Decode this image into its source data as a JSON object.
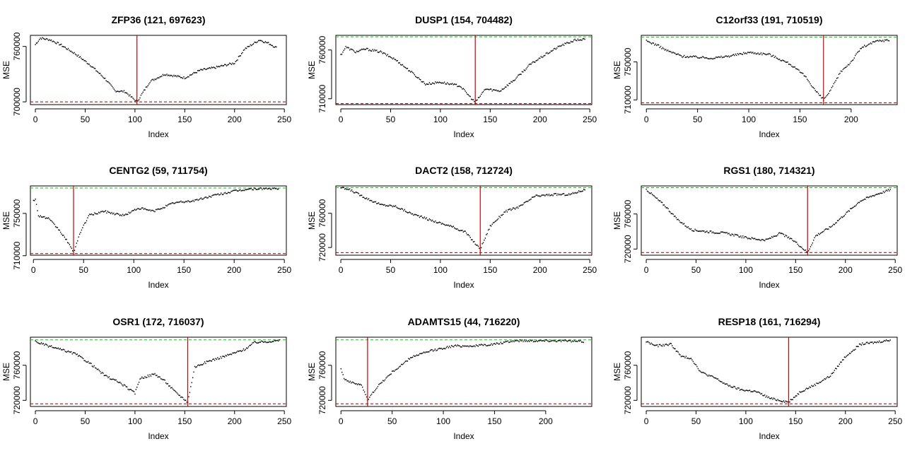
{
  "chart_data": [
    {
      "type": "scatter",
      "title": "ZFP36 (121, 697623)",
      "xlabel": "Index",
      "ylabel": "MSE",
      "xlim": [
        -5,
        252
      ],
      "ylim": [
        697000,
        772000
      ],
      "xticks": [
        0,
        50,
        100,
        150,
        200,
        250
      ],
      "yticks": [
        700000,
        760000
      ],
      "n": 243,
      "min_index": 102,
      "hline_low": 700000,
      "hline_high": null,
      "trend": [
        [
          0,
          762000
        ],
        [
          5,
          769000
        ],
        [
          15,
          767000
        ],
        [
          25,
          762000
        ],
        [
          40,
          752000
        ],
        [
          55,
          740000
        ],
        [
          70,
          725000
        ],
        [
          80,
          712000
        ],
        [
          90,
          711000
        ],
        [
          102,
          700000
        ],
        [
          115,
          722000
        ],
        [
          130,
          730000
        ],
        [
          150,
          726000
        ],
        [
          165,
          734000
        ],
        [
          180,
          737000
        ],
        [
          200,
          742000
        ],
        [
          210,
          757000
        ],
        [
          225,
          767000
        ],
        [
          235,
          763000
        ],
        [
          243,
          758000
        ]
      ],
      "colors": {
        "vline": "#cc0000",
        "hline_low": "#8b0000",
        "hline_high": "#00cc00"
      }
    },
    {
      "type": "scatter",
      "title": "DUSP1 (154, 704482)",
      "xlabel": "Index",
      "ylabel": "MSE",
      "xlim": [
        -5,
        252
      ],
      "ylim": [
        704000,
        775000
      ],
      "xticks": [
        0,
        50,
        100,
        150,
        200,
        250
      ],
      "yticks": [
        710000,
        760000
      ],
      "n": 246,
      "min_index": 135,
      "hline_low": 705000,
      "hline_high": 773500,
      "trend": [
        [
          0,
          755000
        ],
        [
          5,
          763000
        ],
        [
          15,
          758000
        ],
        [
          25,
          761000
        ],
        [
          40,
          758000
        ],
        [
          55,
          750000
        ],
        [
          70,
          738000
        ],
        [
          85,
          725000
        ],
        [
          100,
          727000
        ],
        [
          120,
          723000
        ],
        [
          135,
          706000
        ],
        [
          145,
          720000
        ],
        [
          160,
          718000
        ],
        [
          175,
          730000
        ],
        [
          190,
          745000
        ],
        [
          205,
          755000
        ],
        [
          220,
          764000
        ],
        [
          235,
          770000
        ],
        [
          246,
          771000
        ]
      ],
      "colors": {
        "vline": "#cc0000",
        "hline_low": "#8b0000",
        "hline_high": "#00cc00"
      }
    },
    {
      "type": "scatter",
      "title": "C12orf33 (191, 710519)",
      "xlabel": "Index",
      "ylabel": "MSE",
      "xlim": [
        -5,
        245
      ],
      "ylim": [
        705000,
        778000
      ],
      "xticks": [
        0,
        50,
        100,
        150,
        200
      ],
      "yticks": [
        710000,
        750000
      ],
      "n": 238,
      "min_index": 173,
      "hline_low": 707000,
      "hline_high": 776000,
      "trend": [
        [
          0,
          772000
        ],
        [
          10,
          768000
        ],
        [
          20,
          762000
        ],
        [
          35,
          756000
        ],
        [
          50,
          755000
        ],
        [
          65,
          754000
        ],
        [
          80,
          756000
        ],
        [
          100,
          760000
        ],
        [
          120,
          758000
        ],
        [
          140,
          748000
        ],
        [
          155,
          735000
        ],
        [
          165,
          720000
        ],
        [
          173,
          710000
        ],
        [
          180,
          720000
        ],
        [
          190,
          740000
        ],
        [
          200,
          750000
        ],
        [
          210,
          765000
        ],
        [
          225,
          772000
        ],
        [
          238,
          773000
        ]
      ],
      "colors": {
        "vline": "#cc0000",
        "hline_low": "#8b0000",
        "hline_high": "#00cc00"
      }
    },
    {
      "type": "scatter",
      "title": "CENTG2 (59, 711754)",
      "xlabel": "Index",
      "ylabel": "MSE",
      "xlim": [
        -3,
        252
      ],
      "ylim": [
        710500,
        776000
      ],
      "xticks": [
        0,
        50,
        100,
        150,
        200,
        250
      ],
      "yticks": [
        710000,
        750000
      ],
      "n": 245,
      "min_index": 40,
      "hline_low": 712000,
      "hline_high": 774000,
      "trend": [
        [
          2,
          763000
        ],
        [
          5,
          748000
        ],
        [
          15,
          745000
        ],
        [
          25,
          735000
        ],
        [
          35,
          722000
        ],
        [
          40,
          712000
        ],
        [
          45,
          728000
        ],
        [
          55,
          748000
        ],
        [
          70,
          752000
        ],
        [
          90,
          748000
        ],
        [
          105,
          755000
        ],
        [
          120,
          752000
        ],
        [
          140,
          760000
        ],
        [
          160,
          762000
        ],
        [
          180,
          767000
        ],
        [
          200,
          771000
        ],
        [
          215,
          773000
        ],
        [
          230,
          773500
        ],
        [
          245,
          773000
        ]
      ],
      "colors": {
        "vline": "#cc0000",
        "hline_low": "#8b0000",
        "hline_high": "#00cc00"
      }
    },
    {
      "type": "scatter",
      "title": "DACT2 (158, 712724)",
      "xlabel": "Index",
      "ylabel": "MSE",
      "xlim": [
        -5,
        252
      ],
      "ylim": [
        711000,
        792000
      ],
      "xticks": [
        0,
        50,
        100,
        150,
        200,
        250
      ],
      "yticks": [
        720000,
        760000
      ],
      "n": 246,
      "min_index": 140,
      "hline_low": 714000,
      "hline_high": 790000,
      "trend": [
        [
          0,
          790000
        ],
        [
          10,
          787000
        ],
        [
          25,
          778000
        ],
        [
          40,
          770000
        ],
        [
          55,
          768000
        ],
        [
          70,
          760000
        ],
        [
          90,
          752000
        ],
        [
          110,
          745000
        ],
        [
          125,
          738000
        ],
        [
          140,
          718000
        ],
        [
          150,
          745000
        ],
        [
          165,
          762000
        ],
        [
          180,
          768000
        ],
        [
          195,
          780000
        ],
        [
          215,
          782000
        ],
        [
          230,
          782000
        ],
        [
          246,
          788000
        ]
      ],
      "colors": {
        "vline": "#cc0000",
        "hline_low": "#8b0000",
        "hline_high": "#00cc00"
      }
    },
    {
      "type": "scatter",
      "title": "RGS1 (180, 714321)",
      "xlabel": "Index",
      "ylabel": "MSE",
      "xlim": [
        -5,
        252
      ],
      "ylim": [
        713000,
        792000
      ],
      "xticks": [
        0,
        50,
        100,
        150,
        200,
        250
      ],
      "yticks": [
        720000,
        760000
      ],
      "n": 246,
      "min_index": 162,
      "hline_low": 716000,
      "hline_high": 790000,
      "trend": [
        [
          0,
          788000
        ],
        [
          10,
          778000
        ],
        [
          20,
          768000
        ],
        [
          30,
          755000
        ],
        [
          45,
          742000
        ],
        [
          60,
          740000
        ],
        [
          80,
          738000
        ],
        [
          100,
          733000
        ],
        [
          120,
          730000
        ],
        [
          135,
          738000
        ],
        [
          150,
          728000
        ],
        [
          162,
          716000
        ],
        [
          170,
          735000
        ],
        [
          185,
          745000
        ],
        [
          200,
          760000
        ],
        [
          215,
          775000
        ],
        [
          230,
          782000
        ],
        [
          246,
          788000
        ]
      ],
      "colors": {
        "vline": "#cc0000",
        "hline_low": "#8b0000",
        "hline_high": "#00cc00"
      }
    },
    {
      "type": "scatter",
      "title": "OSR1 (172, 716037)",
      "xlabel": "Index",
      "ylabel": "MSE",
      "xlim": [
        -5,
        252
      ],
      "ylim": [
        713000,
        792000
      ],
      "xticks": [
        0,
        50,
        100,
        150,
        200,
        250
      ],
      "yticks": [
        720000,
        760000
      ],
      "n": 246,
      "min_index": 153,
      "hline_low": 716000,
      "hline_high": 789000,
      "trend": [
        [
          0,
          787000
        ],
        [
          10,
          783000
        ],
        [
          25,
          778000
        ],
        [
          40,
          773000
        ],
        [
          55,
          762000
        ],
        [
          70,
          748000
        ],
        [
          85,
          740000
        ],
        [
          100,
          728000
        ],
        [
          105,
          745000
        ],
        [
          120,
          750000
        ],
        [
          130,
          742000
        ],
        [
          140,
          730000
        ],
        [
          153,
          718000
        ],
        [
          160,
          758000
        ],
        [
          175,
          765000
        ],
        [
          195,
          772000
        ],
        [
          210,
          778000
        ],
        [
          220,
          786000
        ],
        [
          246,
          788000
        ]
      ],
      "colors": {
        "vline": "#cc0000",
        "hline_low": "#8b0000",
        "hline_high": "#00cc00"
      }
    },
    {
      "type": "scatter",
      "title": "ADAMTS15 (44, 716220)",
      "xlabel": "Index",
      "ylabel": "MSE",
      "xlim": [
        -5,
        245
      ],
      "ylim": [
        713000,
        792000
      ],
      "xticks": [
        0,
        50,
        100,
        150,
        200
      ],
      "yticks": [
        720000,
        760000
      ],
      "n": 238,
      "min_index": 26,
      "hline_low": 716000,
      "hline_high": 789000,
      "trend": [
        [
          0,
          757000
        ],
        [
          3,
          745000
        ],
        [
          10,
          740000
        ],
        [
          20,
          738000
        ],
        [
          26,
          720000
        ],
        [
          35,
          735000
        ],
        [
          50,
          752000
        ],
        [
          70,
          770000
        ],
        [
          90,
          777000
        ],
        [
          110,
          782000
        ],
        [
          130,
          782000
        ],
        [
          150,
          784000
        ],
        [
          170,
          788000
        ],
        [
          190,
          788000
        ],
        [
          210,
          788000
        ],
        [
          238,
          787000
        ]
      ],
      "colors": {
        "vline": "#cc0000",
        "hline_low": "#8b0000",
        "hline_high": "#00cc00"
      }
    },
    {
      "type": "scatter",
      "title": "RESP18 (161, 716294)",
      "xlabel": "Index",
      "ylabel": "MSE",
      "xlim": [
        -5,
        252
      ],
      "ylim": [
        713000,
        792000
      ],
      "xticks": [
        0,
        50,
        100,
        150,
        200,
        250
      ],
      "yticks": [
        720000,
        760000
      ],
      "n": 246,
      "min_index": 143,
      "hline_low": 716000,
      "hline_high": null,
      "trend": [
        [
          0,
          787000
        ],
        [
          10,
          782000
        ],
        [
          25,
          784000
        ],
        [
          35,
          770000
        ],
        [
          45,
          768000
        ],
        [
          55,
          752000
        ],
        [
          70,
          745000
        ],
        [
          80,
          738000
        ],
        [
          95,
          732000
        ],
        [
          110,
          730000
        ],
        [
          125,
          722000
        ],
        [
          143,
          718000
        ],
        [
          155,
          730000
        ],
        [
          170,
          738000
        ],
        [
          185,
          748000
        ],
        [
          200,
          770000
        ],
        [
          215,
          784000
        ],
        [
          230,
          786000
        ],
        [
          246,
          789000
        ]
      ],
      "colors": {
        "vline": "#cc0000",
        "hline_low": "#8b0000",
        "hline_high": "#00cc00"
      }
    }
  ]
}
